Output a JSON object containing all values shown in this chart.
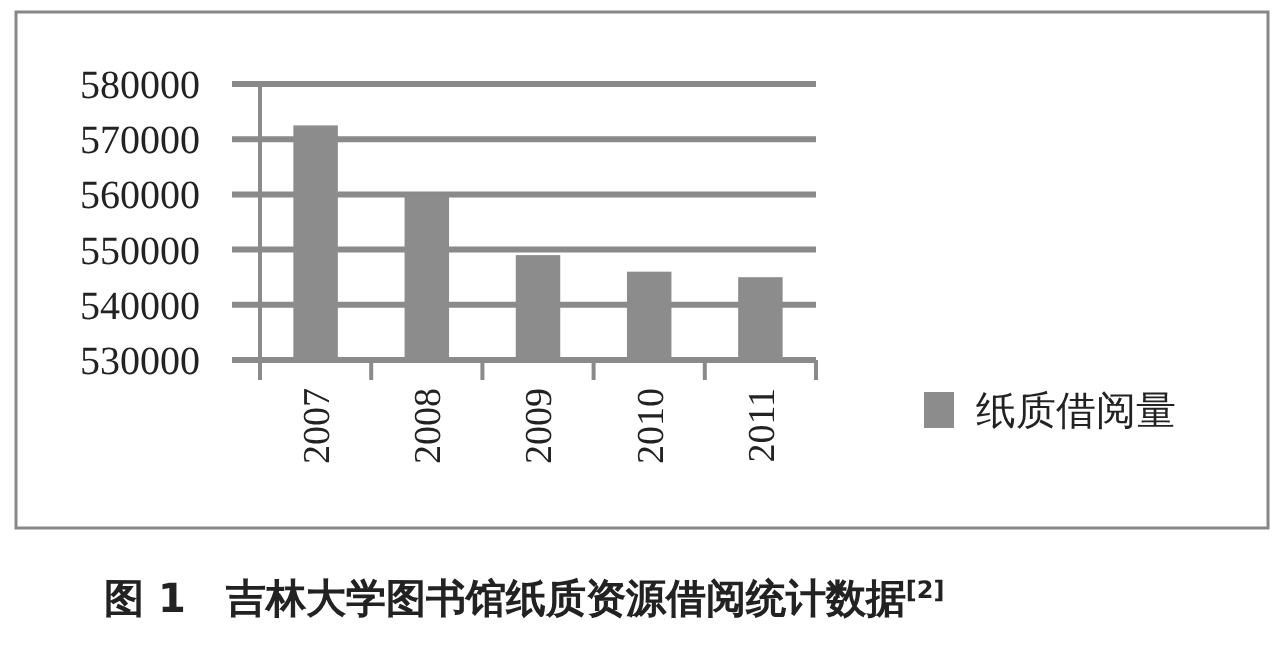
{
  "chart_data": {
    "type": "bar",
    "title": "图 1　吉林大学图书馆纸质资源借阅统计数据$^{[2]}$",
    "categories": [
      "2007",
      "2008",
      "2009",
      "2010",
      "2011"
    ],
    "series": [
      {
        "name": "纸质借阅量",
        "color": "#8c8c8c",
        "values": [
          572500,
          560000,
          549000,
          546000,
          545000
        ]
      }
    ],
    "ylim": [
      530000,
      580000
    ],
    "yticks": [
      530000,
      540000,
      550000,
      560000,
      570000,
      580000
    ],
    "grid": "y",
    "legend": "right"
  }
}
